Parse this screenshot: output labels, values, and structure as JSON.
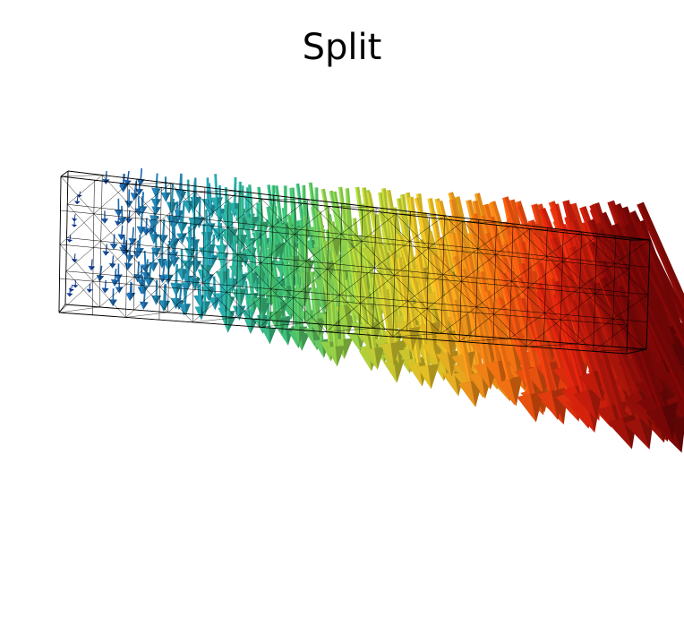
{
  "title": "Split",
  "colors": {
    "background": "#ffffff",
    "wireframe": "#000000",
    "colormap": [
      "#0a2a8c",
      "#1f6fb0",
      "#23a0a8",
      "#3cb46a",
      "#9ac43a",
      "#d2b022",
      "#e06a10",
      "#c8200c",
      "#6e0606"
    ]
  }
}
